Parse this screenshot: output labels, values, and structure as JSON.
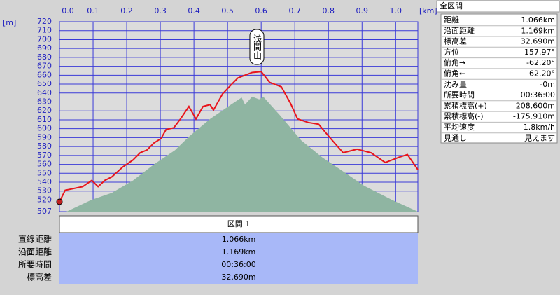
{
  "chart_data": {
    "type": "line",
    "x_unit": "[km]",
    "y_unit": "[m]",
    "annotation": "浅間山",
    "xlim": [
      0,
      1.066
    ],
    "xticks": [
      {
        "value": 0,
        "label": "0.0"
      },
      0.1,
      0.2,
      0.3,
      0.4,
      0.5,
      0.6,
      0.7,
      0.8,
      0.9,
      {
        "value": 1,
        "label": "1.0"
      }
    ],
    "ylim": [
      507,
      720
    ],
    "yticks": [
      507,
      520,
      530,
      540,
      550,
      560,
      570,
      580,
      590,
      600,
      610,
      620,
      630,
      640,
      650,
      660,
      670,
      680,
      690,
      700,
      710,
      720
    ],
    "grid": true,
    "series": [
      {
        "color": "#8fb5a2",
        "fill": true,
        "x": [
          0,
          0.021,
          0.094,
          0.156,
          0.219,
          0.281,
          0.344,
          0.385,
          0.448,
          0.51,
          0.542,
          0.552,
          0.573,
          0.594,
          0.606,
          0.656,
          0.719,
          0.781,
          0.844,
          0.906,
          0.99,
          1.066
        ],
        "values": [
          507,
          507,
          520,
          528,
          542,
          560,
          576,
          591,
          611,
          627,
          635,
          627,
          636,
          633,
          636,
          615,
          587,
          568,
          552,
          536,
          520,
          507
        ]
      },
      {
        "color": "#e8141c",
        "x": [
          0,
          0.017,
          0.031,
          0.069,
          0.096,
          0.115,
          0.135,
          0.156,
          0.188,
          0.219,
          0.24,
          0.26,
          0.281,
          0.302,
          0.317,
          0.34,
          0.36,
          0.385,
          0.406,
          0.427,
          0.448,
          0.458,
          0.485,
          0.51,
          0.531,
          0.552,
          0.573,
          0.6,
          0.625,
          0.646,
          0.66,
          0.688,
          0.708,
          0.74,
          0.771,
          0.802,
          0.823,
          0.844,
          0.885,
          0.927,
          0.969,
          1.01,
          1.035,
          1.066
        ],
        "values": [
          518,
          531,
          532,
          535,
          542,
          535,
          542,
          546,
          557,
          565,
          573,
          576,
          584,
          589,
          599,
          601,
          611,
          625,
          611,
          625,
          627,
          621,
          639,
          649,
          657,
          660,
          663,
          664,
          652,
          649,
          647,
          628,
          611,
          607,
          605,
          591,
          582,
          573,
          577,
          573,
          562,
          568,
          571,
          554
        ]
      }
    ]
  },
  "summary": {
    "title": "全区間",
    "rows": [
      [
        "距離",
        "1.066km"
      ],
      [
        "沿面距離",
        "1.169km"
      ],
      [
        "標高差",
        "32.690m"
      ],
      [
        "方位",
        "157.97°"
      ],
      [
        "俯角→",
        "-62.20°"
      ],
      [
        "俯角←",
        "62.20°"
      ],
      [
        "沈み量",
        "-0m"
      ],
      [
        "所要時間",
        "00:36:00"
      ],
      [
        "累積標高(+)",
        "208.600m"
      ],
      [
        "累積標高(-)",
        "-175.910m"
      ],
      [
        "平均速度",
        "1.8km/h"
      ],
      [
        "見通し",
        "見えます"
      ]
    ]
  },
  "section": {
    "title": "区間 1",
    "rows": [
      [
        "直線距離",
        "1.066km"
      ],
      [
        "沿面距離",
        "1.169km"
      ],
      [
        "所要時間",
        "00:36:00"
      ],
      [
        "標高差",
        "32.690m"
      ]
    ]
  }
}
